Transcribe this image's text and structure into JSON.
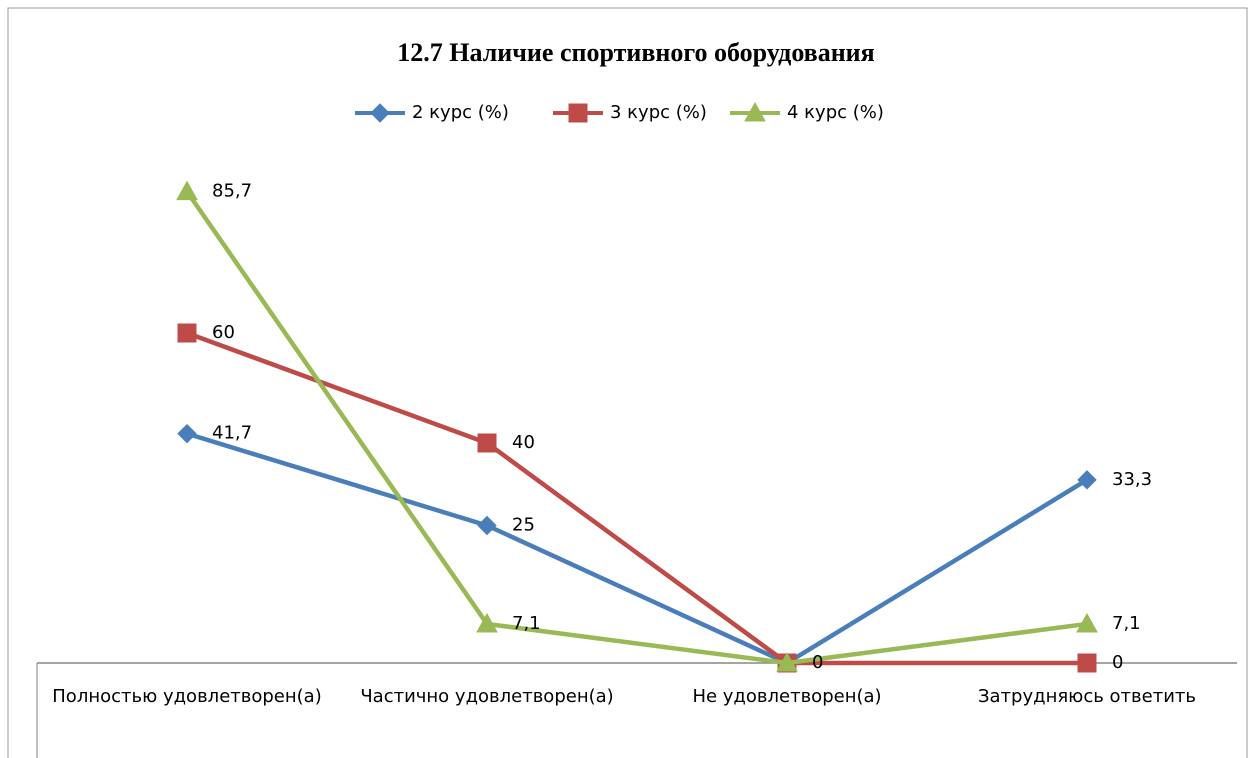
{
  "chart_data": {
    "type": "line",
    "title": "12.7 Наличие  спортивного  оборудования",
    "categories": [
      "Полностью удовлетворен(а)",
      "Частично удовлетворен(а)",
      "Не удовлетворен(а)",
      "Затрудняюсь ответить"
    ],
    "series": [
      {
        "name": "2 курс (%)",
        "color": "#4a7ebb",
        "marker": "diamond",
        "values": [
          41.7,
          25,
          0,
          33.3
        ],
        "value_labels": [
          "41,7",
          "25",
          null,
          "33,3"
        ]
      },
      {
        "name": "3 курс (%)",
        "color": "#be4b48",
        "marker": "square",
        "values": [
          60,
          40,
          0,
          0
        ],
        "value_labels": [
          "60",
          "40",
          null,
          "0"
        ]
      },
      {
        "name": "4 курс (%)",
        "color": "#98b954",
        "marker": "triangle",
        "values": [
          85.7,
          7.1,
          0,
          7.1
        ],
        "value_labels": [
          "85,7",
          "7,1",
          "0",
          "7,1"
        ]
      }
    ],
    "ylim": [
      0,
      90
    ],
    "legend": "top"
  }
}
